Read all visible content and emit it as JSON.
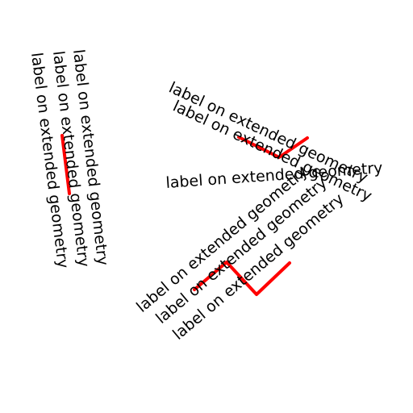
{
  "colors": {
    "background": "#ffffff",
    "geometry": "#ff0000",
    "text": "#000000"
  },
  "label_text": "label on extended geometry",
  "groups": [
    {
      "shape": "short vertical line",
      "labels": [
        "label on extended geometry",
        "label on extended geometry",
        "label on extended geometry"
      ]
    },
    {
      "shape": "V-shaped line",
      "labels": [
        "label on extended geometry",
        "label on extended geometry",
        "label on extended geometry"
      ]
    },
    {
      "shape": "zig-zag line",
      "labels": [
        "label on extended geometry",
        "label on extended geometry",
        "label on extended geometry"
      ]
    }
  ]
}
